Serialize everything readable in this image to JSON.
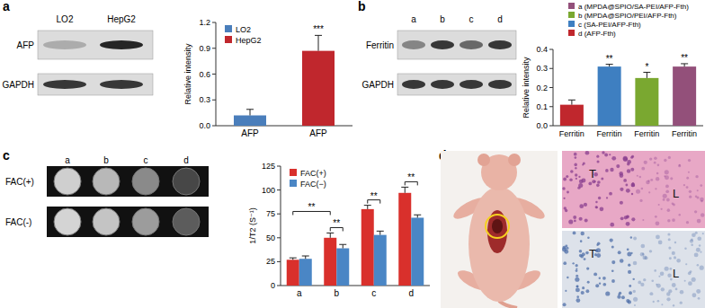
{
  "figure": {
    "panel_labels": [
      "a",
      "b",
      "c",
      "d"
    ],
    "blot_a": {
      "lanes": [
        "LO2",
        "HepG2"
      ],
      "rows": [
        "AFP",
        "GAPDH"
      ]
    },
    "blot_b": {
      "lanes": [
        "a",
        "b",
        "c",
        "d"
      ],
      "rows": [
        "Ferritin",
        "GAPDH"
      ]
    },
    "mri_c": {
      "columns": [
        "a",
        "b",
        "c",
        "d"
      ],
      "rows": [
        "FAC(+)",
        "FAC(-)"
      ]
    },
    "histology_d": {
      "labels": [
        "T",
        "L"
      ]
    }
  },
  "chart_data": [
    {
      "type": "bar",
      "ylabel": "Relative intensity",
      "categories": [
        "AFP",
        "AFP"
      ],
      "series": [
        {
          "name": "LO2",
          "color": "#4a7ebb",
          "values": [
            0.12,
            null
          ],
          "errors": [
            0.07,
            null
          ]
        },
        {
          "name": "HepG2",
          "color": "#c0272d",
          "values": [
            null,
            0.87
          ],
          "errors": [
            null,
            0.18
          ]
        }
      ],
      "ylim": [
        0,
        1.2
      ],
      "yticks": [
        {
          "value": 0,
          "label": "0.0"
        },
        0.3,
        0.6,
        0.9,
        1.2
      ],
      "legend": "top-left",
      "annotations": [
        {
          "text": "***",
          "category": 1
        }
      ]
    },
    {
      "type": "bar",
      "ylabel": "Relative intensity",
      "categories": [
        "Ferritin",
        "Ferritin",
        "Ferritin",
        "Ferritin"
      ],
      "series": [
        {
          "name": "a (MPDA@SPIO/SA-PEI/AFP-Fth)",
          "color": "#93507a",
          "values": [
            null,
            null,
            null,
            0.31
          ],
          "errors": [
            null,
            null,
            null,
            0.015
          ]
        },
        {
          "name": "b (MPDA@SPIO/PEI/AFP-Fth)",
          "color": "#7aa830",
          "values": [
            null,
            null,
            0.25,
            null
          ],
          "errors": [
            null,
            null,
            0.03,
            null
          ]
        },
        {
          "name": "c (SA-PEI/AFP-Fth)",
          "color": "#3e7fc1",
          "values": [
            null,
            0.31,
            null,
            null
          ],
          "errors": [
            null,
            0.012,
            null,
            null
          ]
        },
        {
          "name": "d (AFP-Fth)",
          "color": "#c0272d",
          "values": [
            0.11,
            null,
            null,
            null
          ],
          "errors": [
            0.025,
            null,
            null,
            null
          ]
        }
      ],
      "ylim": [
        0,
        0.4
      ],
      "yticks": [
        {
          "value": 0,
          "label": "0.0"
        },
        0.1,
        0.2,
        0.3,
        0.4
      ],
      "legend": "top-right",
      "annotations": [
        {
          "text": "**",
          "category": 1
        },
        {
          "text": "*",
          "category": 2
        },
        {
          "text": "**",
          "category": 3
        }
      ]
    },
    {
      "type": "bar",
      "ylabel": "1/T2 (S⁻¹)",
      "categories": [
        "a",
        "b",
        "c",
        "d"
      ],
      "series": [
        {
          "name": "FAC(+)",
          "color": "#d9302c",
          "values": [
            27,
            50,
            80,
            97
          ],
          "errors": [
            2,
            5,
            4,
            6
          ]
        },
        {
          "name": "FAC(−)",
          "color": "#4a86c5",
          "values": [
            28,
            39,
            53,
            71
          ],
          "errors": [
            3,
            4,
            4,
            3
          ]
        }
      ],
      "ylim": [
        0,
        125
      ],
      "yticks": [
        0,
        25,
        50,
        75,
        100,
        125
      ],
      "legend": "top-left",
      "annotations": [
        {
          "text": "**",
          "from": 0,
          "to": 1
        },
        {
          "text": "**",
          "from": 1,
          "to": 1
        },
        {
          "text": "**",
          "from": 2,
          "to": 2
        },
        {
          "text": "**",
          "from": 3,
          "to": 3
        }
      ]
    }
  ]
}
